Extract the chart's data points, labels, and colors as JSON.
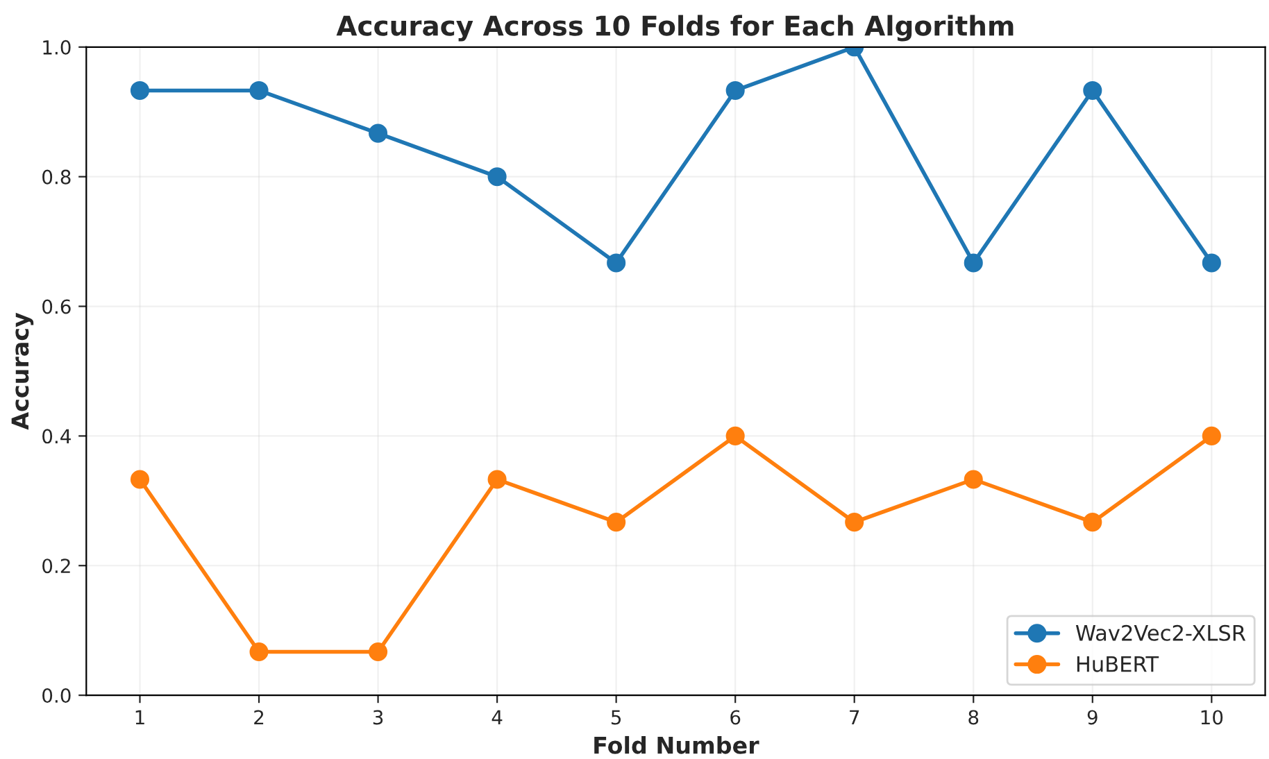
{
  "chart_data": {
    "type": "line",
    "title": "Accuracy Across 10 Folds for Each Algorithm",
    "xlabel": "Fold Number",
    "ylabel": "Accuracy",
    "x": [
      1,
      2,
      3,
      4,
      5,
      6,
      7,
      8,
      9,
      10
    ],
    "series": [
      {
        "name": "Wav2Vec2-XLSR",
        "color": "#1f77b4",
        "values": [
          0.933,
          0.933,
          0.867,
          0.8,
          0.667,
          0.933,
          1.0,
          0.667,
          0.933,
          0.667
        ]
      },
      {
        "name": "HuBERT",
        "color": "#ff7f0e",
        "values": [
          0.333,
          0.067,
          0.067,
          0.333,
          0.267,
          0.4,
          0.267,
          0.333,
          0.267,
          0.4
        ]
      }
    ],
    "xlim": [
      0.55,
      10.45
    ],
    "xticks": [
      1,
      2,
      3,
      4,
      5,
      6,
      7,
      8,
      9,
      10
    ],
    "ylim": [
      0,
      1
    ],
    "yticks": [
      {
        "value": 0,
        "label": "0.0"
      },
      0.2,
      0.4,
      0.6,
      0.8,
      {
        "value": 1,
        "label": "1.0"
      }
    ],
    "grid": true,
    "legend": "bottom right",
    "marker": "circle",
    "line_style": "solid"
  }
}
